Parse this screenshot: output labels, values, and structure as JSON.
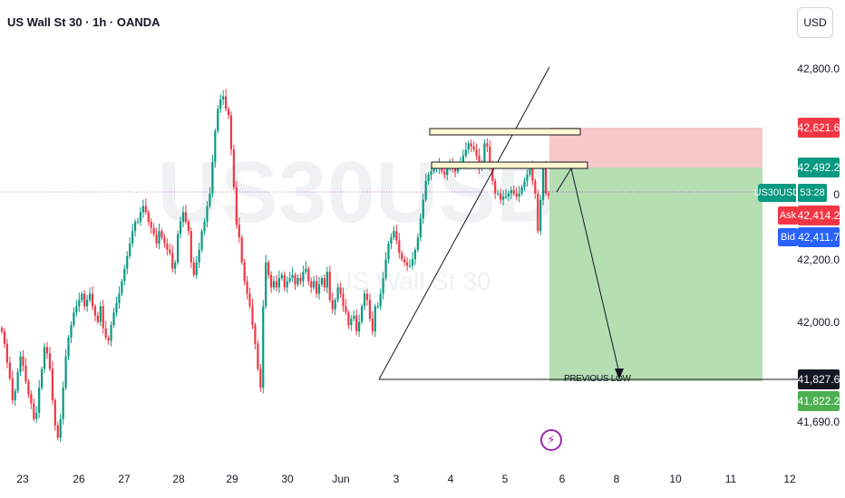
{
  "header": {
    "title": "US Wall St 30 · 1h · OANDA",
    "currency_button": "USD"
  },
  "watermark": {
    "symbol": "US30USD",
    "subtitle": "US Wall St 30"
  },
  "price_axis": {
    "ticks": [
      "42,800.0",
      "42,200.0",
      "42,000.0",
      "41,690.0"
    ],
    "tick_values": [
      42800,
      42200,
      42000,
      41690
    ],
    "tick_partial": "0"
  },
  "badges": {
    "stop": {
      "text": "42,621.6",
      "value": 42621.6,
      "color": "#f23645"
    },
    "entry": {
      "text": "42,492.2",
      "value": 42492.2,
      "color": "#089981"
    },
    "symbol_tag": {
      "symbol": "US30USD",
      "countdown": "53:28",
      "value": 42414.2,
      "color": "#089981"
    },
    "ask": {
      "label": "Ask",
      "text": "42,414.2",
      "value": 42414.2,
      "color": "#f23645"
    },
    "bid": {
      "label": "Bid",
      "text": "42,411.7",
      "value": 42411.7,
      "color": "#2962ff"
    },
    "level": {
      "text": "41,827.6",
      "value": 41827.6,
      "color": "#131722"
    },
    "target": {
      "text": "41,822.2",
      "value": 41822.2,
      "color": "#4caf50"
    }
  },
  "time_axis": {
    "labels": [
      "23",
      "26",
      "27",
      "28",
      "29",
      "30",
      "Jun",
      "3",
      "4",
      "5",
      "6",
      "8",
      "10",
      "11",
      "12"
    ]
  },
  "annotations": {
    "previous_low": "PREVIOUS LOW",
    "flash_icon": "lightning-icon"
  },
  "chart_data": {
    "type": "candlestick",
    "title": "US Wall St 30 · 1h · OANDA",
    "ylim": [
      41690,
      42850
    ],
    "up_color": "#089981",
    "down_color": "#f23645",
    "close": [
      41980,
      41940,
      41880,
      41830,
      41760,
      41790,
      41850,
      41900,
      41870,
      41820,
      41780,
      41750,
      41700,
      41720,
      41800,
      41860,
      41930,
      41910,
      41860,
      41760,
      41680,
      41640,
      41700,
      41800,
      41900,
      41960,
      42000,
      42040,
      42060,
      42080,
      42100,
      42060,
      42080,
      42100,
      42060,
      42030,
      42010,
      42060,
      41990,
      41960,
      41950,
      42000,
      42040,
      42070,
      42100,
      42140,
      42180,
      42220,
      42260,
      42300,
      42330,
      42330,
      42360,
      42380,
      42360,
      42330,
      42310,
      42290,
      42260,
      42300,
      42280,
      42260,
      42240,
      42230,
      42180,
      42200,
      42290,
      42330,
      42360,
      42330,
      42300,
      42200,
      42160,
      42200,
      42240,
      42300,
      42330,
      42380,
      42420,
      42520,
      42620,
      42690,
      42720,
      42730,
      42690,
      42670,
      42560,
      42440,
      42320,
      42280,
      42200,
      42140,
      42100,
      42060,
      42000,
      41940,
      41860,
      41800,
      42060,
      42200,
      42160,
      42120,
      42140,
      42120,
      42150,
      42160,
      42120,
      42140,
      42150,
      42160,
      42130,
      42150,
      42140,
      42170,
      42180,
      42140,
      42120,
      42140,
      42100,
      42130,
      42150,
      42120,
      42170,
      42080,
      42050,
      42080,
      42120,
      42100,
      42060,
      42040,
      42000,
      42020,
      42030,
      41980,
      42010,
      42060,
      42100,
      42080,
      42020,
      41980,
      42060,
      42060,
      42100,
      42150,
      42210,
      42260,
      42280,
      42300,
      42270,
      42230,
      42210,
      42200,
      42190,
      42190,
      42210,
      42240,
      42280,
      42340,
      42400,
      42460,
      42480,
      42490,
      42500,
      42500,
      42510,
      42490,
      42480,
      42500,
      42510,
      42500,
      42490,
      42510,
      42520,
      42540,
      42560,
      42580,
      42570,
      42560,
      42540,
      42500,
      42520,
      42580,
      42570,
      42500,
      42460,
      42420,
      42420,
      42400,
      42410,
      42410,
      42420,
      42430,
      42420,
      42410,
      42420,
      42440,
      42460,
      42480,
      42500,
      42460,
      42420,
      42300,
      42400,
      42500,
      42420,
      42414
    ]
  }
}
